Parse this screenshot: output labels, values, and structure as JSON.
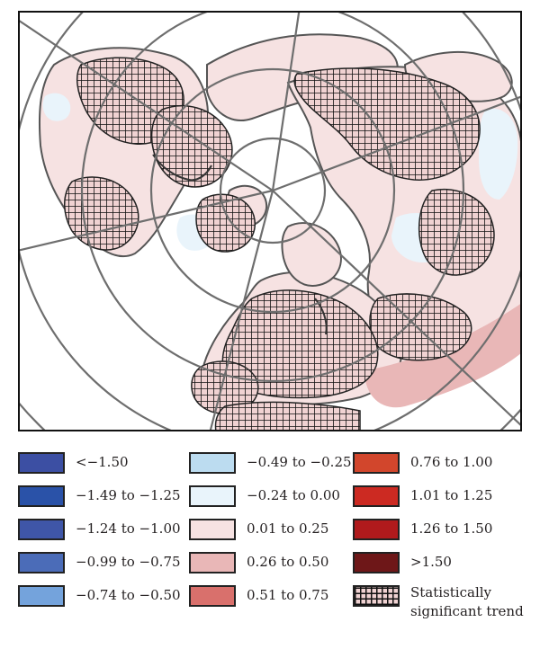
{
  "legend": {
    "columns": [
      [
        {
          "label": "<−1.50",
          "color": "#3c4fa3"
        },
        {
          "label": "−1.49 to −1.25",
          "color": "#2a52a8"
        },
        {
          "label": "−1.24 to −1.00",
          "color": "#3f56a8"
        },
        {
          "label": "−0.99 to −0.75",
          "color": "#4b6cb8"
        },
        {
          "label": "−0.74 to −0.50",
          "color": "#74a3dc"
        }
      ],
      [
        {
          "label": "−0.49 to −0.25",
          "color": "#bcdcf0"
        },
        {
          "label": "−0.24 to 0.00",
          "color": "#e9f4fb"
        },
        {
          "label": "0.01 to 0.25",
          "color": "#f6e2e2"
        },
        {
          "label": "0.26 to 0.50",
          "color": "#e9b7b7"
        },
        {
          "label": "0.51 to 0.75",
          "color": "#d9706c"
        }
      ],
      [
        {
          "label": "0.76 to 1.00",
          "color": "#d2462c"
        },
        {
          "label": "1.01 to 1.25",
          "color": "#cc2a22"
        },
        {
          "label": "1.26 to 1.50",
          "color": "#b01a1c"
        },
        {
          "label": ">1.50",
          "color": "#6e1718"
        },
        {
          "label": "Statistically significant trend",
          "color": "hatch"
        }
      ]
    ]
  },
  "map": {
    "background_color": "#ffffff",
    "land_color": "#f6e2e2",
    "cool_color": "#e9f4fb",
    "warm_color": "#e9b7b7",
    "outline_color": "#6e6e6e"
  }
}
